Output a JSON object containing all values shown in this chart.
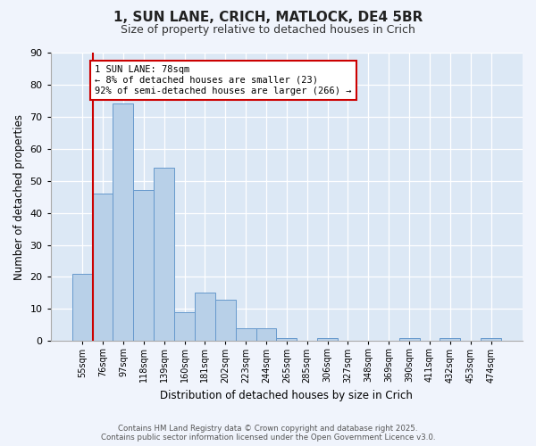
{
  "title": "1, SUN LANE, CRICH, MATLOCK, DE4 5BR",
  "subtitle": "Size of property relative to detached houses in Crich",
  "xlabel": "Distribution of detached houses by size in Crich",
  "ylabel": "Number of detached properties",
  "bin_labels": [
    "55sqm",
    "76sqm",
    "97sqm",
    "118sqm",
    "139sqm",
    "160sqm",
    "181sqm",
    "202sqm",
    "223sqm",
    "244sqm",
    "265sqm",
    "285sqm",
    "306sqm",
    "327sqm",
    "348sqm",
    "369sqm",
    "390sqm",
    "411sqm",
    "432sqm",
    "453sqm",
    "474sqm"
  ],
  "bar_heights": [
    21,
    46,
    74,
    47,
    54,
    9,
    15,
    13,
    4,
    4,
    1,
    0,
    1,
    0,
    0,
    0,
    1,
    0,
    1,
    0,
    1
  ],
  "bar_color": "#b8d0e8",
  "bar_edge_color": "#6699cc",
  "vline_color": "#cc0000",
  "annotation_text": "1 SUN LANE: 78sqm\n← 8% of detached houses are smaller (23)\n92% of semi-detached houses are larger (266) →",
  "annotation_box_color": "#ffffff",
  "annotation_box_edge": "#cc0000",
  "ylim": [
    0,
    90
  ],
  "yticks": [
    0,
    10,
    20,
    30,
    40,
    50,
    60,
    70,
    80,
    90
  ],
  "bg_color": "#dce8f5",
  "fig_bg_color": "#f0f4fc",
  "footer_line1": "Contains HM Land Registry data © Crown copyright and database right 2025.",
  "footer_line2": "Contains public sector information licensed under the Open Government Licence v3.0."
}
